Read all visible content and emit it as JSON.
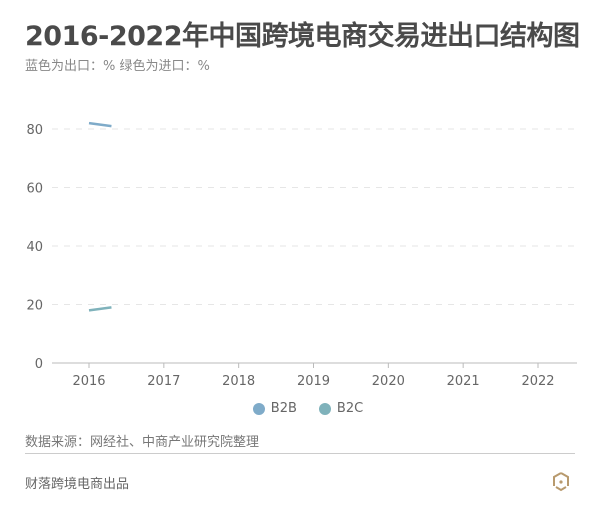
{
  "header": {
    "title": "2016-2022年中国跨境电商交易进出口结构图",
    "subtitle": "蓝色为出口：% 绿色为进口：%"
  },
  "chart_data": {
    "type": "line",
    "title": "2016-2022年中国跨境电商交易进出口结构图",
    "categories": [
      "2016",
      "2017",
      "2018",
      "2019",
      "2020",
      "2021",
      "2022"
    ],
    "ylim": [
      0,
      80
    ],
    "y_ticks": [
      "0",
      "20",
      "40",
      "60",
      "80"
    ],
    "grid": true,
    "legend_position": "bottom",
    "series": [
      {
        "name": "B2B",
        "color": "#7fabc9",
        "x": [
          2016,
          2016.3
        ],
        "values": [
          82,
          81
        ]
      },
      {
        "name": "B2C",
        "color": "#7fb2bb",
        "x": [
          2016,
          2016.3
        ],
        "values": [
          18,
          19
        ]
      }
    ]
  },
  "footer": {
    "source": "数据来源：网经社、中商产业研究院整理",
    "credit": "财落跨境电商出品",
    "logo_icon": "hexagon-logo-icon",
    "logo_color": "#b89a6e"
  }
}
